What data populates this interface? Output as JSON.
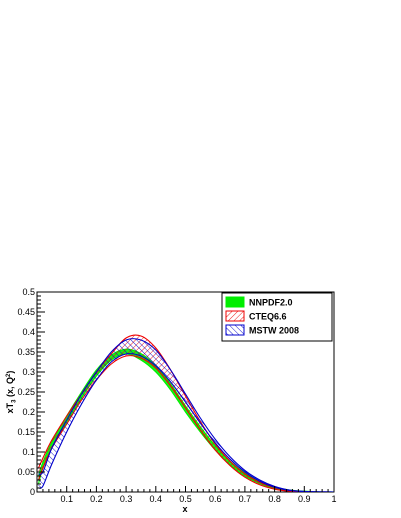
{
  "chart_data": {
    "type": "line",
    "title": "",
    "xlabel": "x",
    "ylabel": "xT3 (x, Q²)",
    "ylabel_parts": {
      "main": "xT",
      "sub": "3",
      "args": " (x, Q",
      "sup": "2",
      "close": ")"
    },
    "xlim": [
      0,
      1
    ],
    "ylim": [
      0,
      0.5
    ],
    "x_ticks": [
      "0.1",
      "0.2",
      "0.3",
      "0.4",
      "0.5",
      "0.6",
      "0.7",
      "0.8",
      "0.9",
      "1"
    ],
    "y_ticks": [
      "0",
      "0.05",
      "0.1",
      "0.15",
      "0.2",
      "0.25",
      "0.3",
      "0.35",
      "0.4",
      "0.45",
      "0.5"
    ],
    "legend_position": "top-right",
    "series": [
      {
        "name": "NNPDF2.0",
        "style": "filled-band",
        "color": "#00ee00",
        "x": [
          0.005,
          0.02,
          0.05,
          0.1,
          0.15,
          0.2,
          0.25,
          0.3,
          0.35,
          0.4,
          0.45,
          0.5,
          0.55,
          0.6,
          0.65,
          0.7,
          0.75,
          0.8,
          0.85,
          0.9,
          0.95,
          1.0
        ],
        "lower": [
          0.02,
          0.06,
          0.11,
          0.175,
          0.235,
          0.29,
          0.33,
          0.345,
          0.33,
          0.3,
          0.255,
          0.2,
          0.15,
          0.105,
          0.068,
          0.04,
          0.021,
          0.009,
          0.003,
          0.001,
          0.0,
          0.0
        ],
        "upper": [
          0.04,
          0.075,
          0.125,
          0.19,
          0.25,
          0.305,
          0.342,
          0.357,
          0.346,
          0.316,
          0.27,
          0.215,
          0.163,
          0.116,
          0.077,
          0.047,
          0.026,
          0.012,
          0.005,
          0.002,
          0.0005,
          0.0
        ]
      },
      {
        "name": "CTEQ6.6",
        "style": "hatched-band",
        "color": "#ee0000",
        "x": [
          0.005,
          0.02,
          0.05,
          0.1,
          0.15,
          0.2,
          0.25,
          0.3,
          0.35,
          0.4,
          0.45,
          0.5,
          0.55,
          0.6,
          0.65,
          0.7,
          0.75,
          0.8,
          0.85,
          0.9,
          0.95,
          1.0
        ],
        "lower": [
          0.03,
          0.06,
          0.11,
          0.17,
          0.23,
          0.28,
          0.32,
          0.34,
          0.335,
          0.31,
          0.265,
          0.21,
          0.155,
          0.105,
          0.066,
          0.037,
          0.018,
          0.007,
          0.002,
          0.0005,
          0.0,
          0.0
        ],
        "upper": [
          0.06,
          0.085,
          0.13,
          0.19,
          0.245,
          0.3,
          0.345,
          0.385,
          0.39,
          0.36,
          0.305,
          0.24,
          0.176,
          0.12,
          0.077,
          0.045,
          0.024,
          0.011,
          0.004,
          0.001,
          0.0002,
          0.0
        ]
      },
      {
        "name": "MSTW 2008",
        "style": "hatched-band",
        "color": "#0000cc",
        "x": [
          0.005,
          0.02,
          0.05,
          0.1,
          0.15,
          0.2,
          0.25,
          0.3,
          0.35,
          0.4,
          0.45,
          0.5,
          0.55,
          0.6,
          0.65,
          0.7,
          0.75,
          0.8,
          0.85,
          0.9,
          0.95,
          1.0
        ],
        "lower": [
          0.01,
          0.015,
          0.07,
          0.15,
          0.22,
          0.28,
          0.325,
          0.345,
          0.34,
          0.315,
          0.275,
          0.225,
          0.172,
          0.123,
          0.082,
          0.05,
          0.027,
          0.012,
          0.004,
          0.001,
          0.0002,
          0.0
        ],
        "upper": [
          0.045,
          0.05,
          0.11,
          0.18,
          0.245,
          0.3,
          0.35,
          0.38,
          0.38,
          0.355,
          0.305,
          0.245,
          0.185,
          0.132,
          0.088,
          0.054,
          0.03,
          0.014,
          0.005,
          0.0015,
          0.0003,
          0.0
        ]
      }
    ]
  }
}
